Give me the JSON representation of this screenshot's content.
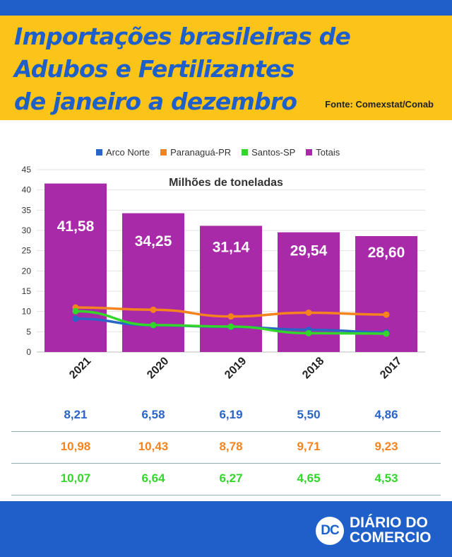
{
  "header": {
    "title_lines": [
      "Importações brasileiras de",
      "Adubos e Fertilizantes",
      "de janeiro a dezembro"
    ],
    "source": "Fonte: Comexstat/Conab"
  },
  "colors": {
    "brand_blue": "#1f5fc9",
    "header_yellow": "#fcc419",
    "arco_norte": "#2a64c6",
    "paranagua": "#f5841f",
    "santos": "#33d62a",
    "totais": "#a82aa8"
  },
  "chart_data": {
    "type": "bar",
    "subtitle": "Milhões de toneladas",
    "categories": [
      "2021",
      "2020",
      "2019",
      "2018",
      "2017"
    ],
    "ylim": [
      0,
      45
    ],
    "yticks": [
      0,
      5,
      10,
      15,
      20,
      25,
      30,
      35,
      40,
      45
    ],
    "grid": true,
    "legend_position": "top",
    "series": [
      {
        "name": "Arco Norte",
        "type": "line",
        "values": [
          8.21,
          6.58,
          6.19,
          5.5,
          4.86
        ],
        "labels": [
          "8,21",
          "6,58",
          "6,19",
          "5,50",
          "4,86"
        ]
      },
      {
        "name": "Paranaguá-PR",
        "type": "line",
        "values": [
          10.98,
          10.43,
          8.78,
          9.71,
          9.23
        ],
        "labels": [
          "10,98",
          "10,43",
          "8,78",
          "9,71",
          "9,23"
        ]
      },
      {
        "name": "Santos-SP",
        "type": "line",
        "values": [
          10.07,
          6.64,
          6.27,
          4.65,
          4.53
        ],
        "labels": [
          "10,07",
          "6,64",
          "6,27",
          "4,65",
          "4,53"
        ]
      },
      {
        "name": "Totais",
        "type": "bar",
        "values": [
          41.58,
          34.25,
          31.14,
          29.54,
          28.6
        ],
        "labels": [
          "41,58",
          "34,25",
          "31,14",
          "29,54",
          "28,60"
        ]
      }
    ]
  },
  "footer": {
    "logo_mark": "DC",
    "logo_lines": [
      "DIÁRIO DO",
      "COMERCIO"
    ]
  }
}
